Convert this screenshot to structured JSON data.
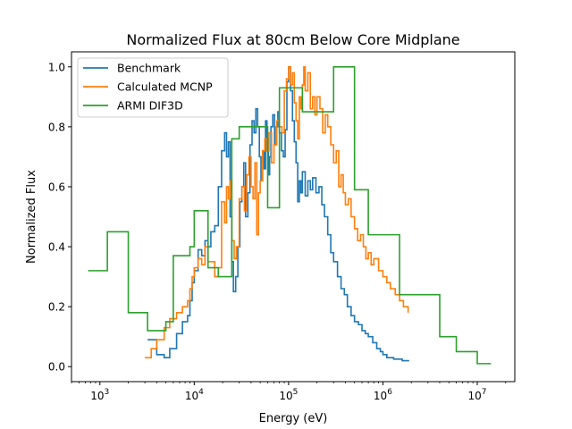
{
  "chart_data": {
    "type": "line",
    "title": "Normalized Flux at 80cm Below Core Midplane",
    "xlabel": "Energy (eV)",
    "ylabel": "Normalized Flux",
    "xscale": "log",
    "xlim": [
      500,
      25000000
    ],
    "ylim": [
      -0.05,
      1.05
    ],
    "x_ticks": [
      {
        "value": 1000,
        "base": "10",
        "exp": "3"
      },
      {
        "value": 10000,
        "base": "10",
        "exp": "4"
      },
      {
        "value": 100000,
        "base": "10",
        "exp": "5"
      },
      {
        "value": 1000000,
        "base": "10",
        "exp": "6"
      },
      {
        "value": 10000000,
        "base": "10",
        "exp": "7"
      }
    ],
    "y_ticks": [
      "0.0",
      "0.2",
      "0.4",
      "0.6",
      "0.8",
      "1.0"
    ],
    "grid": false,
    "legend_position": "top-left",
    "line_style": "step",
    "series": [
      {
        "name": "Benchmark",
        "color": "#1f77b4",
        "x": [
          3200,
          4000,
          4800,
          5500,
          6500,
          7500,
          8500,
          9000,
          9500,
          10000,
          11000,
          12000,
          13000,
          14000,
          15000,
          16500,
          18000,
          19500,
          21000,
          22000,
          23000,
          24000,
          25000,
          26000,
          27500,
          29000,
          30500,
          32000,
          33500,
          35000,
          37000,
          39000,
          41000,
          43000,
          45000,
          47000,
          49000,
          51000,
          53000,
          55000,
          57000,
          59000,
          61000,
          63000,
          65000,
          68000,
          71000,
          74000,
          77000,
          80000,
          84000,
          88000,
          92000,
          96000,
          100000,
          105000,
          110000,
          115000,
          120000,
          125000,
          130000,
          135000,
          140000,
          150000,
          160000,
          170000,
          180000,
          195000,
          210000,
          225000,
          240000,
          260000,
          280000,
          300000,
          330000,
          360000,
          390000,
          420000,
          460000,
          500000,
          550000,
          600000,
          650000,
          700000,
          780000,
          860000,
          940000,
          1000000,
          1100000,
          1200000,
          1300000,
          1450000,
          1600000,
          1800000,
          1900000
        ],
        "y": [
          0.09,
          0.04,
          0.03,
          0.06,
          0.11,
          0.15,
          0.17,
          0.22,
          0.28,
          0.32,
          0.39,
          0.37,
          0.42,
          0.4,
          0.45,
          0.47,
          0.6,
          0.72,
          0.78,
          0.7,
          0.75,
          0.5,
          0.35,
          0.25,
          0.3,
          0.4,
          0.55,
          0.6,
          0.68,
          0.5,
          0.58,
          0.74,
          0.82,
          0.78,
          0.86,
          0.8,
          0.7,
          0.62,
          0.72,
          0.66,
          0.82,
          0.76,
          0.64,
          0.7,
          0.8,
          0.84,
          0.74,
          0.8,
          0.85,
          0.78,
          0.72,
          0.7,
          0.79,
          0.95,
          1.0,
          0.92,
          0.82,
          0.75,
          0.68,
          0.55,
          0.62,
          0.58,
          0.65,
          0.57,
          0.62,
          0.59,
          0.63,
          0.58,
          0.6,
          0.54,
          0.5,
          0.44,
          0.38,
          0.35,
          0.3,
          0.26,
          0.24,
          0.2,
          0.17,
          0.15,
          0.14,
          0.12,
          0.11,
          0.1,
          0.08,
          0.06,
          0.05,
          0.04,
          0.03,
          0.03,
          0.025,
          0.025,
          0.02,
          0.02,
          0.02
        ]
      },
      {
        "name": "Calculated MCNP",
        "color": "#ff7f0e",
        "x": [
          3000,
          3500,
          4000,
          4800,
          5500,
          6500,
          7500,
          8500,
          9000,
          9500,
          10000,
          11000,
          12000,
          13000,
          14000,
          15000,
          16500,
          18000,
          19500,
          21000,
          22000,
          23000,
          24000,
          25000,
          26500,
          28000,
          30000,
          32000,
          34000,
          36000,
          38000,
          40000,
          42000,
          44000,
          46000,
          48000,
          50000,
          53000,
          56000,
          59000,
          62000,
          66000,
          70000,
          75000,
          80000,
          85000,
          90000,
          95000,
          100000,
          105000,
          110000,
          115000,
          120000,
          125000,
          130000,
          135000,
          140000,
          145000,
          150000,
          160000,
          170000,
          180000,
          190000,
          200000,
          215000,
          230000,
          245000,
          260000,
          280000,
          300000,
          320000,
          340000,
          360000,
          380000,
          400000,
          430000,
          460000,
          500000,
          540000,
          580000,
          620000,
          660000,
          700000,
          750000,
          800000,
          900000,
          1000000,
          1100000,
          1200000,
          1350000,
          1500000,
          1650000,
          1850000
        ],
        "y": [
          0.03,
          0.06,
          0.09,
          0.13,
          0.16,
          0.18,
          0.2,
          0.22,
          0.26,
          0.3,
          0.33,
          0.36,
          0.34,
          0.4,
          0.35,
          0.35,
          0.3,
          0.33,
          0.55,
          0.48,
          0.6,
          0.56,
          0.62,
          0.42,
          0.36,
          0.4,
          0.56,
          0.6,
          0.52,
          0.64,
          0.7,
          0.6,
          0.56,
          0.68,
          0.44,
          0.58,
          0.62,
          0.72,
          0.76,
          0.72,
          0.78,
          0.68,
          0.74,
          0.82,
          0.8,
          0.78,
          0.92,
          0.96,
          1.0,
          0.94,
          0.98,
          0.88,
          0.82,
          0.76,
          0.9,
          0.86,
          0.94,
          1.0,
          0.92,
          0.98,
          0.86,
          0.9,
          0.84,
          0.9,
          0.86,
          0.78,
          0.84,
          0.8,
          0.74,
          0.68,
          0.72,
          0.6,
          0.64,
          0.58,
          0.54,
          0.56,
          0.5,
          0.46,
          0.42,
          0.44,
          0.4,
          0.36,
          0.38,
          0.34,
          0.36,
          0.32,
          0.3,
          0.28,
          0.26,
          0.24,
          0.22,
          0.2,
          0.18
        ]
      },
      {
        "name": "ARMI DIF3D",
        "color": "#2ca02c",
        "x": [
          750,
          1200,
          2000,
          3200,
          4000,
          5000,
          6000,
          9000,
          10000,
          14000,
          18000,
          25000,
          30000,
          40000,
          60000,
          80000,
          100000,
          140000,
          180000,
          300000,
          500000,
          700000,
          1000000,
          1500000,
          2000000,
          4000000,
          6000000,
          10000000,
          14000000
        ],
        "y": [
          0.32,
          0.45,
          0.18,
          0.12,
          0.12,
          0.15,
          0.37,
          0.4,
          0.52,
          0.33,
          0.3,
          0.76,
          0.8,
          0.8,
          0.53,
          0.93,
          0.93,
          0.85,
          0.85,
          1.0,
          0.59,
          0.44,
          0.44,
          0.24,
          0.24,
          0.1,
          0.05,
          0.01,
          0.01
        ]
      }
    ]
  }
}
